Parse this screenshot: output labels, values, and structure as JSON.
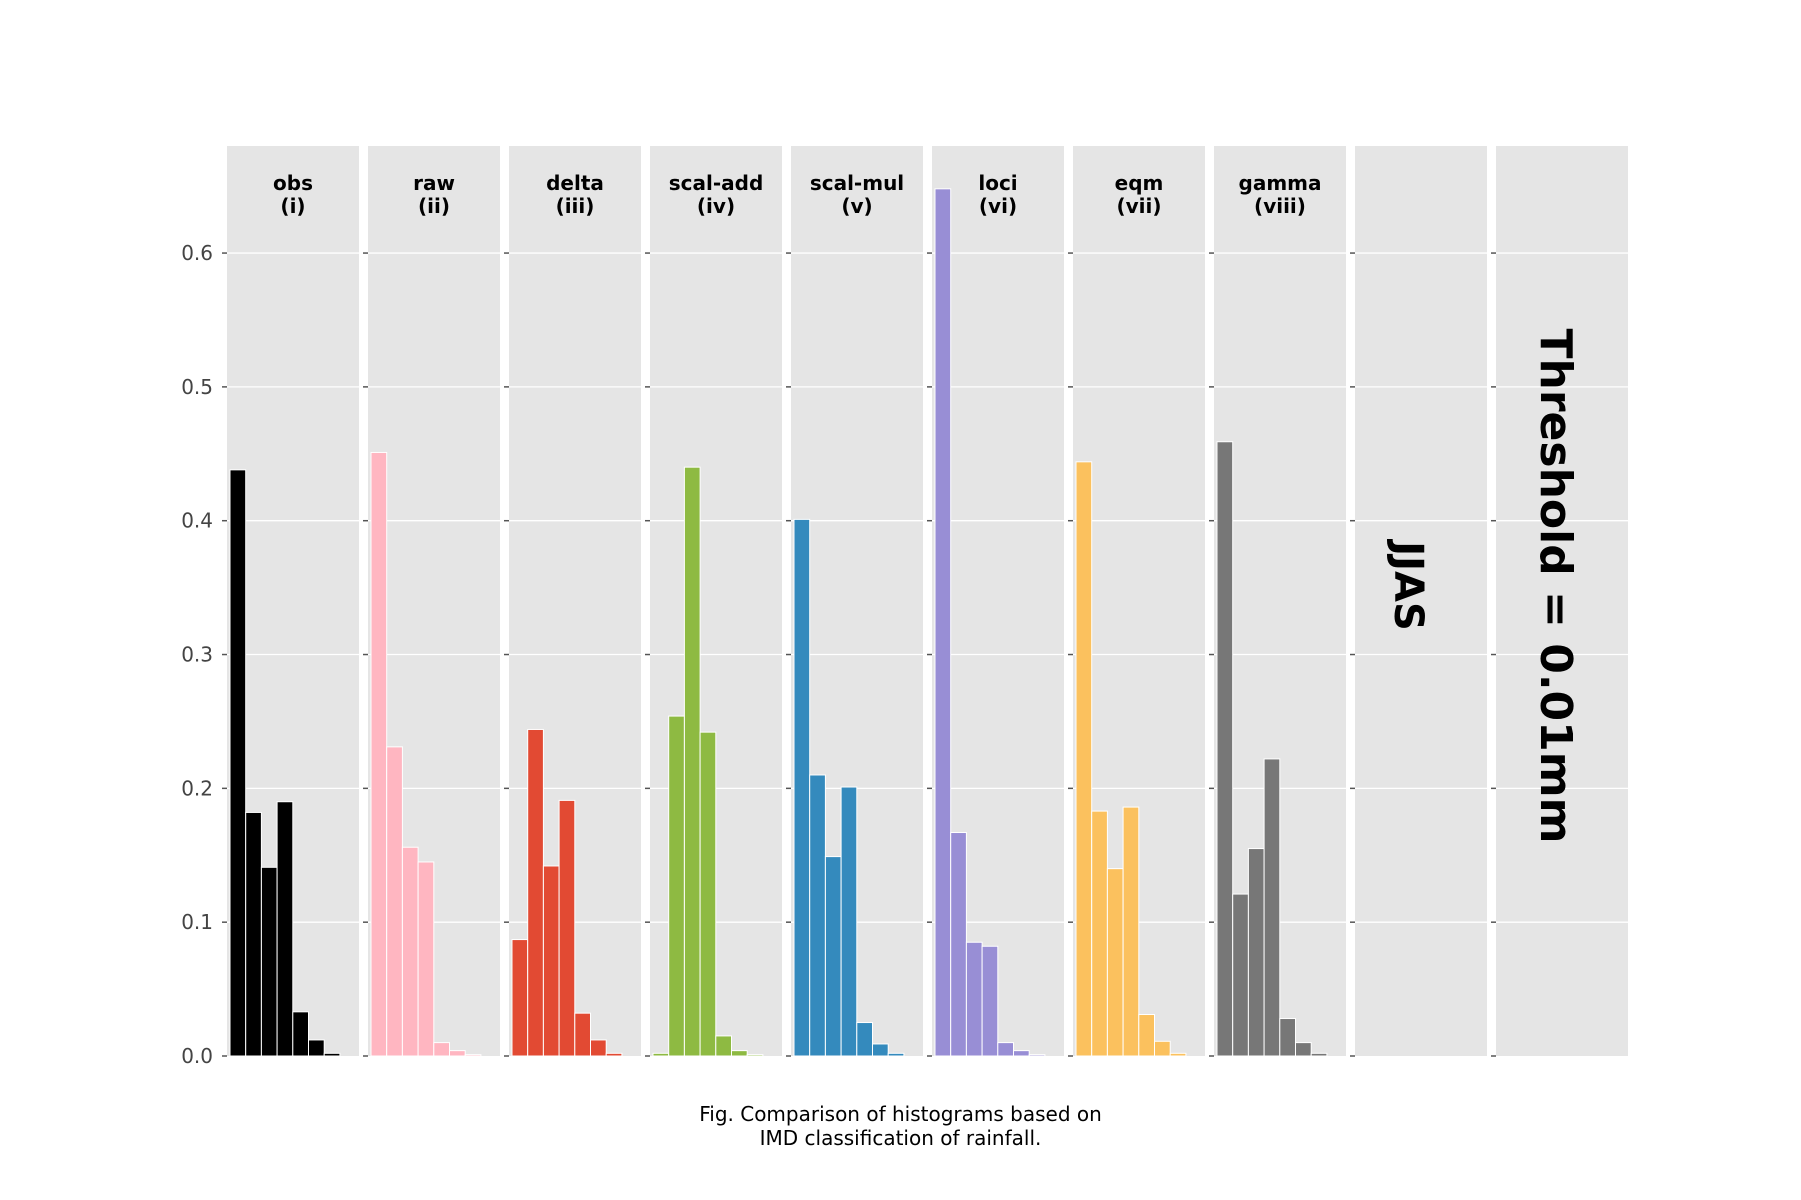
{
  "chart_data": {
    "type": "bar",
    "subtype": "histogram-facets",
    "ylim": [
      0,
      0.68
    ],
    "yticks": [
      "0.0",
      "0.1",
      "0.2",
      "0.3",
      "0.4",
      "0.5",
      "0.6"
    ],
    "ytick_values": [
      0.0,
      0.1,
      0.2,
      0.3,
      0.4,
      0.5,
      0.6
    ],
    "grid": true,
    "panels": [
      {
        "name": "obs",
        "label": "(i)",
        "color": "#000000",
        "values": [
          0.438,
          0.182,
          0.141,
          0.19,
          0.033,
          0.012,
          0.002,
          0.0
        ]
      },
      {
        "name": "raw",
        "label": "(ii)",
        "color": "#ffb6c1",
        "values": [
          0.451,
          0.231,
          0.156,
          0.145,
          0.01,
          0.004,
          0.001,
          0.0
        ]
      },
      {
        "name": "delta",
        "label": "(iii)",
        "color": "#e24a33",
        "values": [
          0.087,
          0.244,
          0.142,
          0.191,
          0.032,
          0.012,
          0.002,
          0.0
        ]
      },
      {
        "name": "scal-add",
        "label": "(iv)",
        "color": "#8eba42",
        "values": [
          0.002,
          0.254,
          0.44,
          0.242,
          0.015,
          0.004,
          0.001,
          0.0
        ]
      },
      {
        "name": "scal-mul",
        "label": "(v)",
        "color": "#348abd",
        "values": [
          0.401,
          0.21,
          0.149,
          0.201,
          0.025,
          0.009,
          0.002,
          0.0
        ]
      },
      {
        "name": "loci",
        "label": "(vi)",
        "color": "#988ed5",
        "values": [
          0.648,
          0.167,
          0.085,
          0.082,
          0.01,
          0.004,
          0.001,
          0.0
        ]
      },
      {
        "name": "eqm",
        "label": "(vii)",
        "color": "#fbc15e",
        "values": [
          0.444,
          0.183,
          0.14,
          0.186,
          0.031,
          0.011,
          0.002,
          0.0
        ]
      },
      {
        "name": "gamma",
        "label": "(viii)",
        "color": "#777777",
        "values": [
          0.459,
          0.121,
          0.155,
          0.222,
          0.028,
          0.01,
          0.002,
          0.0
        ]
      },
      {
        "name": "",
        "label": "",
        "color": "#777777",
        "values": []
      },
      {
        "name": "",
        "label": "",
        "color": "#777777",
        "values": []
      }
    ],
    "season_label": "JJAS",
    "threshold_label": "Threshold = 0.01mm",
    "caption_lines": [
      "Fig. Comparison of histograms based on",
      "IMD classification of rainfall."
    ],
    "colors": {
      "panel_bg": "#e5e5e5",
      "grid": "#ffffff",
      "bar_edge": "#ffffff",
      "tick": "#555555"
    }
  }
}
